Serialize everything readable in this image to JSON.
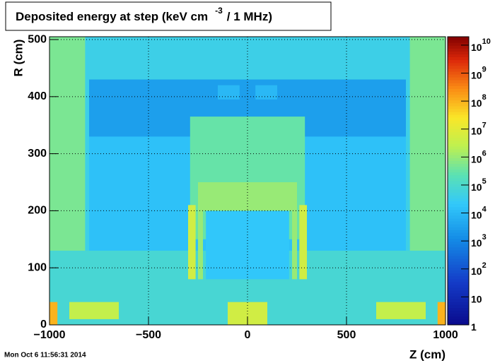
{
  "chart_data": {
    "type": "heatmap",
    "title": "Deposited energy at step (keV cm",
    "title_exponent": "-3",
    "title_suffix": "/ 1 MHz)",
    "x_label": "Z (cm)",
    "y_label": "R (cm)",
    "xlim": [
      -1000,
      1000
    ],
    "ylim": [
      0,
      505
    ],
    "xticks": [
      {
        "value": -1000,
        "label": "−1000"
      },
      {
        "value": -500,
        "label": "−500"
      },
      0,
      500,
      1000
    ],
    "yticks": [
      0,
      100,
      200,
      300,
      400,
      500
    ],
    "zlim": [
      1,
      20000000000
    ],
    "zscale": "log",
    "zticks": [
      1,
      10,
      {
        "value": 100,
        "label": "10",
        "exponent": "2"
      },
      {
        "value": 1000,
        "label": "10",
        "exponent": "3"
      },
      {
        "value": 10000,
        "label": "10",
        "exponent": "4"
      },
      {
        "value": 100000,
        "label": "10",
        "exponent": "5"
      },
      {
        "value": 1000000,
        "label": "10",
        "exponent": "6"
      },
      {
        "value": 10000000,
        "label": "10",
        "exponent": "7"
      },
      {
        "value": 100000000,
        "label": "10",
        "exponent": "8"
      },
      {
        "value": 1000000000,
        "label": "10",
        "exponent": "9"
      },
      {
        "value": 10000000000,
        "label": "10",
        "exponent": "10"
      }
    ],
    "grid": true,
    "cells": [
      {
        "z": [
          -1000,
          1000
        ],
        "r": [
          0,
          505
        ],
        "value": 40000
      },
      {
        "z": [
          -800,
          800
        ],
        "r": [
          0,
          430
        ],
        "value": 15000
      },
      {
        "z": [
          -800,
          800
        ],
        "r": [
          330,
          430
        ],
        "value": 3000
      },
      {
        "z": [
          -1000,
          -820
        ],
        "r": [
          130,
          505
        ],
        "value": 500000
      },
      {
        "z": [
          820,
          1000
        ],
        "r": [
          130,
          505
        ],
        "value": 500000
      },
      {
        "z": [
          -1000,
          1000
        ],
        "r": [
          0,
          130
        ],
        "value": 80000
      },
      {
        "z": [
          -290,
          290
        ],
        "r": [
          150,
          365
        ],
        "value": 300000
      },
      {
        "z": [
          -210,
          210
        ],
        "r": [
          80,
          250
        ],
        "value": 20000
      },
      {
        "z": [
          -250,
          250
        ],
        "r": [
          200,
          250
        ],
        "value": 1000000
      },
      {
        "z": [
          -250,
          -225
        ],
        "r": [
          80,
          210
        ],
        "value": 1000000
      },
      {
        "z": [
          225,
          250
        ],
        "r": [
          80,
          210
        ],
        "value": 1000000
      },
      {
        "z": [
          -300,
          -262
        ],
        "r": [
          80,
          210
        ],
        "value": 5000000
      },
      {
        "z": [
          262,
          300
        ],
        "r": [
          80,
          210
        ],
        "value": 5000000
      },
      {
        "z": [
          -150,
          -40
        ],
        "r": [
          395,
          420
        ],
        "value": 10000
      },
      {
        "z": [
          40,
          150
        ],
        "r": [
          395,
          420
        ],
        "value": 10000
      },
      {
        "z": [
          -900,
          -650
        ],
        "r": [
          10,
          40
        ],
        "value": 3000000
      },
      {
        "z": [
          650,
          900
        ],
        "r": [
          10,
          40
        ],
        "value": 3000000
      },
      {
        "z": [
          -1000,
          -960
        ],
        "r": [
          0,
          40
        ],
        "value": 100000000
      },
      {
        "z": [
          960,
          1000
        ],
        "r": [
          0,
          40
        ],
        "value": 100000000
      },
      {
        "z": [
          -100,
          100
        ],
        "r": [
          0,
          40
        ],
        "value": 5000000
      }
    ]
  },
  "timestamp": "Mon Oct  6 11:56:31 2014"
}
